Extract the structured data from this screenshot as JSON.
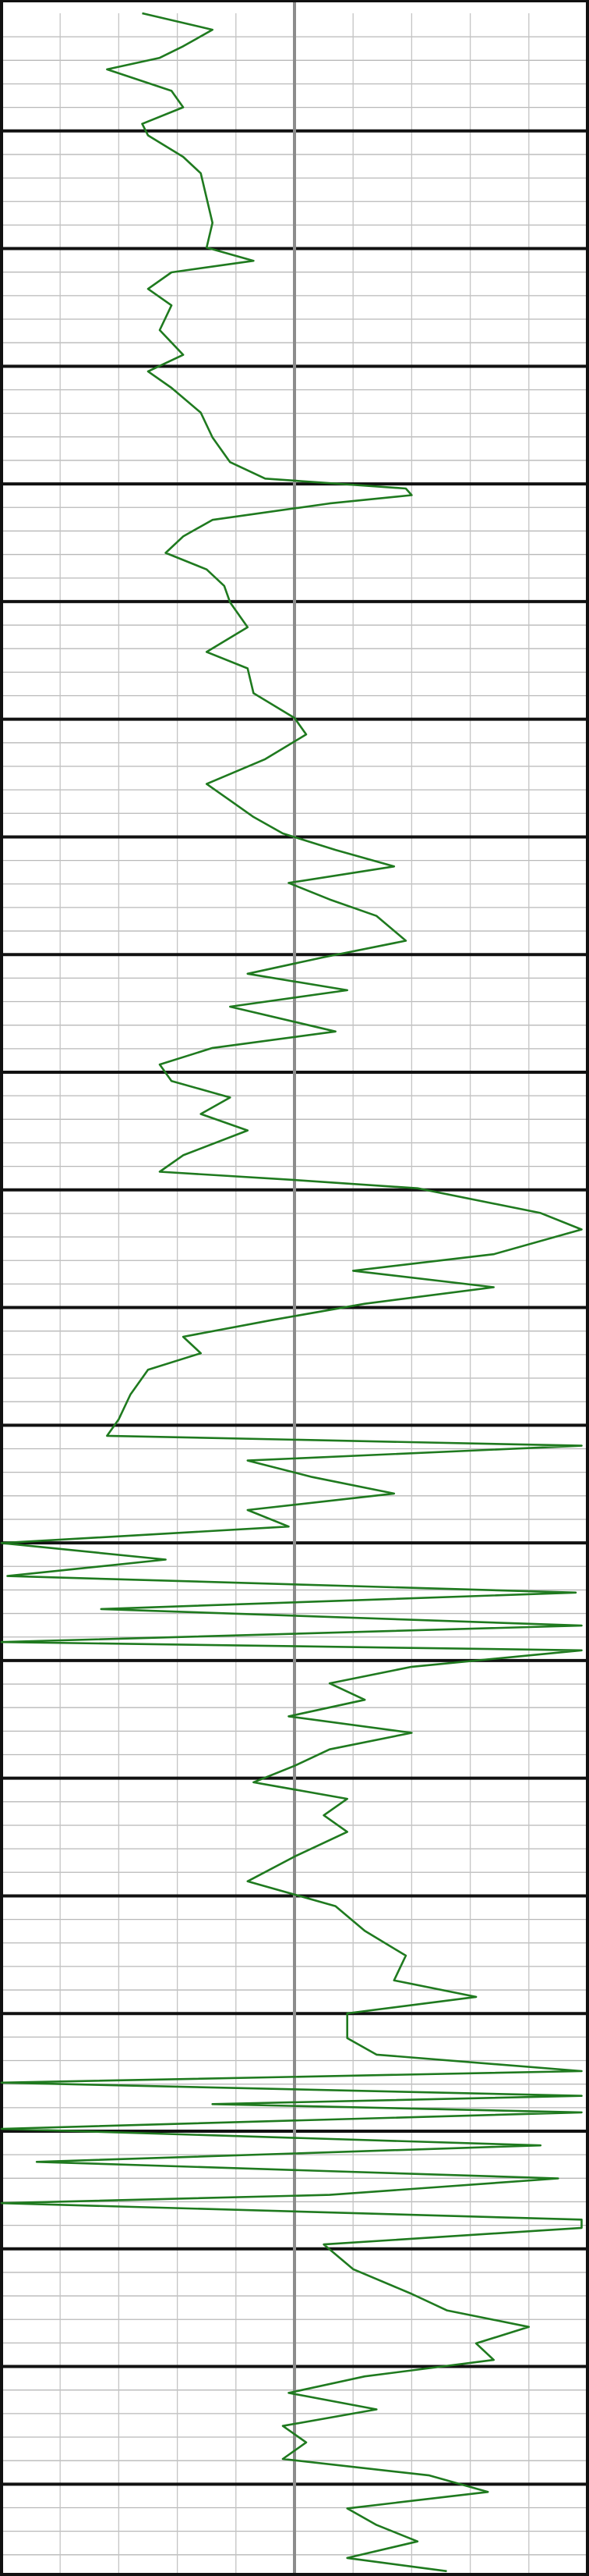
{
  "chart_data": {
    "type": "line",
    "orientation": "vertical",
    "xlim": [
      0,
      100
    ],
    "xticks": [
      0,
      10,
      20,
      30,
      40,
      50,
      60,
      70,
      80,
      90,
      100
    ],
    "center_line": 50,
    "ylim": [
      0,
      1552
    ],
    "y_inverted": true,
    "yticks": [
      71.3,
      142.6,
      213.9,
      285.2,
      356.5,
      427.8,
      499.1,
      570.4,
      641.7,
      713,
      784.3,
      855.6,
      926.9,
      998.2,
      1069.5,
      1140.8,
      1212.1,
      1283.4,
      1354.7,
      1426,
      1497.3
    ],
    "minor_per_major": 5,
    "grid": true,
    "series": [
      {
        "color": "#1f7a1f",
        "x": [
          0,
          10,
          20,
          27,
          34,
          47,
          57,
          67,
          74,
          87,
          97,
          112,
          127,
          142,
          150,
          157,
          167,
          177,
          192,
          207,
          217,
          227,
          242,
          257,
          272,
          282,
          288,
          292,
          297,
          307,
          317,
          327,
          337,
          347,
          357,
          372,
          387,
          397,
          412,
          427,
          437,
          452,
          467,
          477,
          487,
          497,
          507,
          517,
          527,
          537,
          547,
          562,
          572,
          582,
          592,
          602,
          617,
          627,
          637,
          647,
          657,
          667,
          677,
          692,
          702,
          707,
          712,
          727,
          737,
          752,
          762,
          772,
          782,
          792,
          802,
          812,
          822,
          837,
          852,
          862,
          868,
          877,
          887,
          897,
          907,
          917,
          927,
          937,
          947,
          957,
          967,
          977,
          987,
          992,
          1002,
          1012,
          1022,
          1032,
          1042,
          1052,
          1062,
          1072,
          1082,
          1092,
          1102,
          1117,
          1132,
          1147,
          1162,
          1177,
          1192,
          1202,
          1212,
          1227,
          1237,
          1247,
          1254,
          1262,
          1267,
          1272,
          1282,
          1292,
          1302,
          1312,
          1322,
          1327,
          1337,
          1342,
          1352,
          1367,
          1382,
          1392,
          1402,
          1412,
          1422,
          1432,
          1442,
          1452,
          1462,
          1472,
          1482,
          1492,
          1502,
          1512,
          1522,
          1532,
          1542,
          1550
        ],
        "values": [
          24,
          36,
          31,
          27,
          18,
          29,
          31,
          24,
          25,
          31,
          34,
          35,
          36,
          35,
          43,
          29,
          25,
          29,
          27,
          31,
          25,
          29,
          34,
          36,
          39,
          45,
          69,
          70,
          56,
          36,
          31,
          28,
          35,
          38,
          39,
          42,
          35,
          42,
          43,
          50,
          52,
          45,
          35,
          39,
          43,
          48,
          57,
          67,
          49,
          56,
          64,
          69,
          55,
          42,
          59,
          39,
          57,
          36,
          27,
          29,
          39,
          34,
          42,
          31,
          27,
          50,
          71,
          92,
          99,
          84,
          60,
          84,
          62,
          46,
          31,
          34,
          25,
          22,
          20,
          18,
          99,
          42,
          53,
          67,
          42,
          49,
          0,
          28,
          1,
          98,
          17,
          99,
          0,
          99,
          70,
          56,
          62,
          49,
          70,
          56,
          50,
          43,
          59,
          55,
          59,
          50,
          42,
          57,
          62,
          69,
          67,
          81,
          59,
          59,
          64,
          99,
          0,
          99,
          36,
          99,
          0,
          92,
          6,
          95,
          56,
          0,
          99,
          99,
          55,
          60,
          70,
          76,
          90,
          81,
          84,
          62,
          49,
          64,
          48,
          52,
          48,
          73,
          83,
          59,
          64,
          71,
          59,
          76
        ]
      }
    ]
  }
}
